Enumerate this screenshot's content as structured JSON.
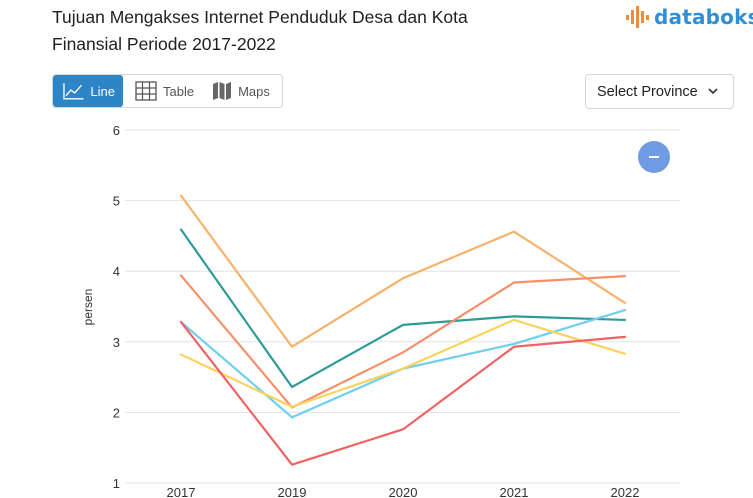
{
  "title": "Tujuan Mengakses Internet Penduduk Desa dan Kota Finansial Periode 2017-2022",
  "brand": {
    "name": "databoks",
    "color": "#2f8fd6",
    "icon": "databoks-bars-logo"
  },
  "view_tabs": [
    {
      "label": "Line",
      "icon": "line-chart-icon",
      "active": true
    },
    {
      "label": "Table",
      "icon": "table-grid-icon",
      "active": false
    },
    {
      "label": "Maps",
      "icon": "map-icon",
      "active": false
    }
  ],
  "province_select": {
    "label": "Select Province",
    "icon": "chevron-down-icon"
  },
  "accent_color": "#2d84c7",
  "fab": {
    "icon": "minus-icon",
    "color": "#6f9be3"
  },
  "chart_data": {
    "type": "line",
    "title": "",
    "xlabel": "",
    "ylabel": "persen",
    "ylim": [
      1,
      6
    ],
    "yticks": [
      1,
      2,
      3,
      4,
      5,
      6
    ],
    "categories": [
      "2017",
      "2019",
      "2020",
      "2021",
      "2022"
    ],
    "grid": true,
    "legend": "none",
    "series": [
      {
        "color": "#f7b26a",
        "values": [
          5.07,
          2.93,
          3.9,
          4.56,
          3.55
        ]
      },
      {
        "color": "#2e9a9a",
        "values": [
          4.59,
          2.36,
          3.24,
          3.36,
          3.31
        ]
      },
      {
        "color": "#f7906a",
        "values": [
          3.94,
          2.07,
          2.85,
          3.84,
          3.93
        ]
      },
      {
        "color": "#6ecff0",
        "values": [
          3.28,
          1.93,
          2.62,
          2.97,
          3.45
        ]
      },
      {
        "color": "#fad25c",
        "values": [
          2.82,
          2.08,
          2.62,
          3.31,
          2.83
        ]
      },
      {
        "color": "#ef6363",
        "values": [
          3.28,
          1.26,
          1.76,
          2.93,
          3.07
        ]
      }
    ]
  }
}
